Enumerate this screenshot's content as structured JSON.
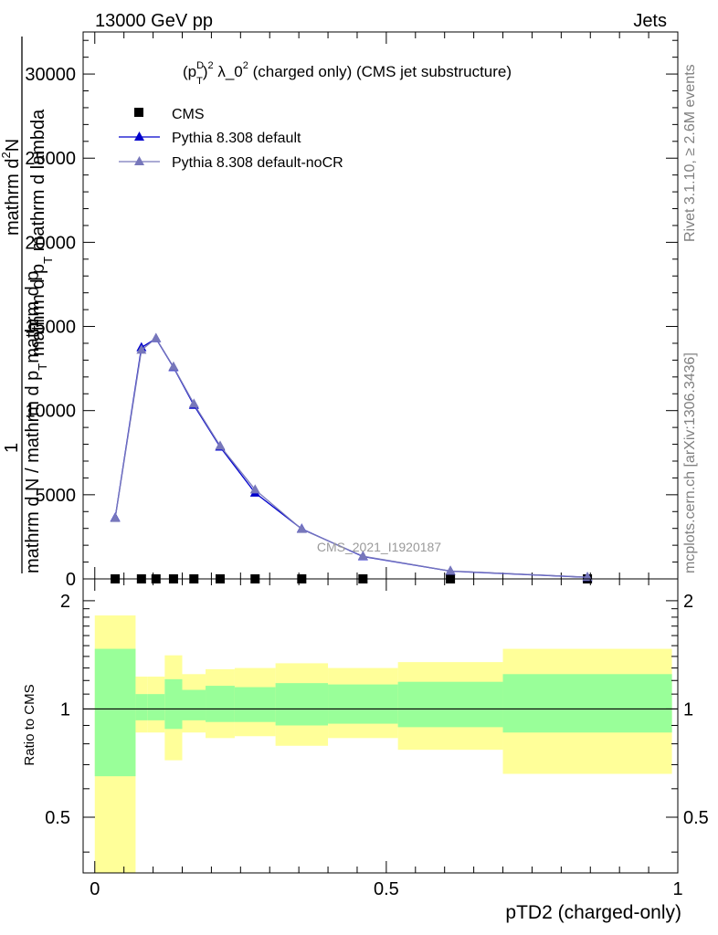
{
  "header": {
    "energy": "13000 GeV pp",
    "process": "Jets"
  },
  "side_labels": {
    "rivet": "Rivet 3.1.10, ≥ 2.6M events",
    "mcplots": "mcplots.cern.ch [arXiv:1306.3436]"
  },
  "main_panel": {
    "title_parts": {
      "open": "(p",
      "sup": "D",
      "sub": "T",
      "mid": ")",
      "sup2": "2",
      "lambda": " λ_0",
      "sup3": "2",
      "rest": " (charged only) (CMS jet substructure)"
    },
    "ylabel": {
      "line1": "mathrm d",
      "line1_sup": "2",
      "line1b": "N",
      "line2a": "mathrm d p",
      "line2_sub": "T",
      "line2b": " mathrm d lambda",
      "one": "1",
      "line3": "mathrm d N / mathrm d p",
      "line3_sub": "T",
      "line3b": "mathrm d p"
    },
    "watermark": "CMS_2021_I1920187"
  },
  "ratio_panel": {
    "ylabel": "Ratio to CMS"
  },
  "xlabel": "pTD2 (charged-only)",
  "colors": {
    "pythia_default": "#0000cc",
    "pythia_nocr": "#7777bb",
    "band_outer": "#ffff99",
    "band_inner": "#99ff99",
    "data": "#000000"
  },
  "chart_data": [
    {
      "type": "line",
      "panel": "main",
      "x": [
        0.035,
        0.08,
        0.105,
        0.135,
        0.17,
        0.215,
        0.275,
        0.355,
        0.46,
        0.61,
        0.845
      ],
      "x_edges": [
        0.0,
        0.07,
        0.09,
        0.12,
        0.15,
        0.19,
        0.24,
        0.31,
        0.4,
        0.52,
        0.7,
        0.99
      ],
      "xlim": [
        -0.02,
        1.0
      ],
      "ylim": [
        0,
        32500
      ],
      "yticks": [
        0,
        5000,
        10000,
        15000,
        20000,
        25000,
        30000
      ],
      "xticks": [
        0,
        0.5,
        1
      ],
      "legend_position": "top-left",
      "series": [
        {
          "name": "CMS",
          "marker": "square",
          "values": [
            0,
            0,
            0,
            0,
            0,
            0,
            0,
            0,
            0,
            0,
            0
          ]
        },
        {
          "name": "Pythia 8.308 default",
          "marker": "triangle",
          "values": [
            3630,
            13750,
            14280,
            12570,
            10320,
            7840,
            5110,
            2970,
            1330,
            460,
            95
          ]
        },
        {
          "name": "Pythia 8.308 default-noCR",
          "marker": "triangle",
          "values": [
            3600,
            13600,
            14300,
            12600,
            10400,
            7900,
            5300,
            2950,
            1350,
            470,
            100
          ]
        }
      ]
    },
    {
      "type": "area",
      "panel": "ratio",
      "ylabel": "Ratio to CMS",
      "ylim": [
        0.35,
        2.3
      ],
      "yticks": [
        0.5,
        1,
        2
      ],
      "x_edges": [
        0.0,
        0.07,
        0.09,
        0.12,
        0.15,
        0.19,
        0.24,
        0.31,
        0.4,
        0.52,
        0.7,
        0.99
      ],
      "inner_band": {
        "low": [
          0.65,
          0.93,
          0.93,
          0.88,
          0.93,
          0.92,
          0.92,
          0.9,
          0.91,
          0.89,
          0.86
        ],
        "high": [
          1.47,
          1.1,
          1.1,
          1.21,
          1.13,
          1.16,
          1.15,
          1.18,
          1.17,
          1.19,
          1.25
        ]
      },
      "outer_band": {
        "low": [
          0.35,
          0.86,
          0.86,
          0.72,
          0.86,
          0.83,
          0.84,
          0.79,
          0.83,
          0.77,
          0.66
        ],
        "high": [
          1.82,
          1.23,
          1.23,
          1.41,
          1.25,
          1.29,
          1.3,
          1.34,
          1.3,
          1.35,
          1.47
        ]
      },
      "reference": 1
    }
  ]
}
